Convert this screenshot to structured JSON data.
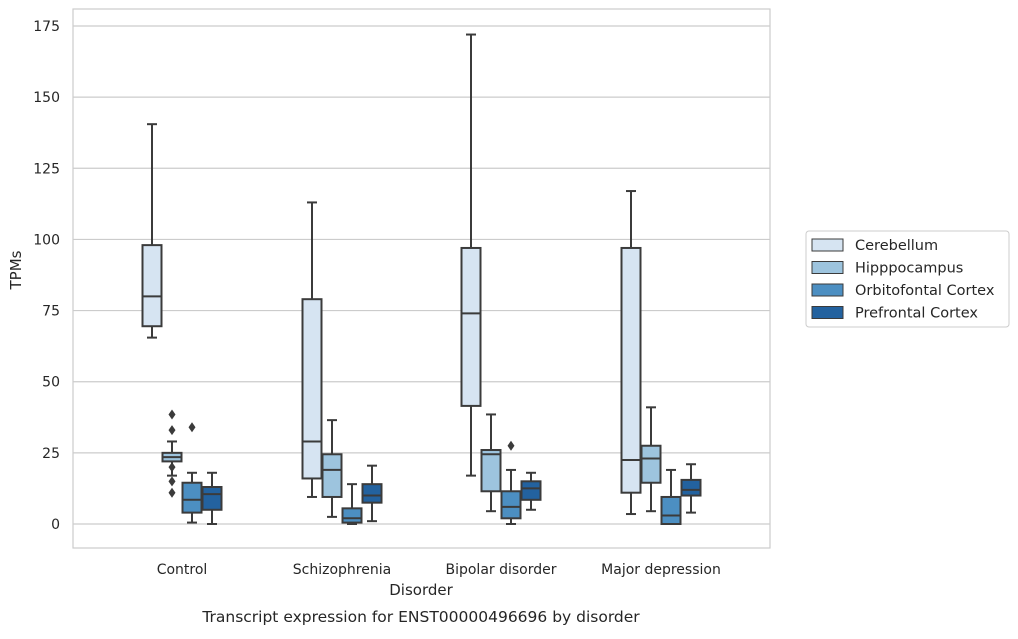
{
  "chart_data": {
    "type": "box",
    "caption": "Transcript expression for ENST00000496696 by disorder",
    "xlabel": "Disorder",
    "ylabel": "TPMs",
    "ylim": [
      -8,
      181
    ],
    "yticks": [
      0,
      25,
      50,
      75,
      100,
      125,
      150,
      175
    ],
    "grid": "horizontal",
    "legend_position": "right-outside",
    "categories": [
      "Control",
      "Schizophrenia",
      "Bipolar disorder",
      "Major depression"
    ],
    "series": [
      {
        "name": "Cerebellum",
        "color": "#d6e4f2",
        "boxes": [
          {
            "min": 65.5,
            "q1": 69.5,
            "median": 80,
            "q3": 98,
            "max": 140.5,
            "outliers": []
          },
          {
            "min": 9.5,
            "q1": 16,
            "median": 29,
            "q3": 79,
            "max": 113,
            "outliers": []
          },
          {
            "min": 17,
            "q1": 41.5,
            "median": 74,
            "q3": 97,
            "max": 172,
            "outliers": []
          },
          {
            "min": 3.5,
            "q1": 11,
            "median": 22.5,
            "q3": 97,
            "max": 117,
            "outliers": []
          }
        ]
      },
      {
        "name": "Hipppocampus",
        "color": "#9dc4de",
        "boxes": [
          {
            "min": 17,
            "q1": 22,
            "median": 23.5,
            "q3": 25,
            "max": 29,
            "outliers": [
              38.5,
              33,
              20,
              15,
              11
            ]
          },
          {
            "min": 2.5,
            "q1": 9.5,
            "median": 19,
            "q3": 24.5,
            "max": 36.5,
            "outliers": []
          },
          {
            "min": 4.5,
            "q1": 11.5,
            "median": 24.5,
            "q3": 26,
            "max": 38.5,
            "outliers": []
          },
          {
            "min": 4.5,
            "q1": 14.5,
            "median": 23,
            "q3": 27.5,
            "max": 41,
            "outliers": []
          }
        ]
      },
      {
        "name": "Orbitofontal Cortex",
        "color": "#4c8fc2",
        "boxes": [
          {
            "min": 0.5,
            "q1": 4,
            "median": 8.5,
            "q3": 14.5,
            "max": 18,
            "outliers": [
              34
            ]
          },
          {
            "min": 0,
            "q1": 0.5,
            "median": 2,
            "q3": 5.5,
            "max": 14,
            "outliers": []
          },
          {
            "min": 0,
            "q1": 2,
            "median": 6,
            "q3": 11.5,
            "max": 19,
            "outliers": [
              27.5
            ]
          },
          {
            "min": 0,
            "q1": 0,
            "median": 3,
            "q3": 9.5,
            "max": 19,
            "outliers": []
          }
        ]
      },
      {
        "name": "Prefrontal Cortex",
        "color": "#23629f",
        "boxes": [
          {
            "min": 0,
            "q1": 5,
            "median": 10.5,
            "q3": 13,
            "max": 18,
            "outliers": []
          },
          {
            "min": 1,
            "q1": 7.5,
            "median": 10,
            "q3": 14,
            "max": 20.5,
            "outliers": []
          },
          {
            "min": 5,
            "q1": 8.5,
            "median": 12.5,
            "q3": 15,
            "max": 18,
            "outliers": []
          },
          {
            "min": 4,
            "q1": 10,
            "median": 12,
            "q3": 15.5,
            "max": 21,
            "outliers": []
          }
        ]
      }
    ]
  }
}
